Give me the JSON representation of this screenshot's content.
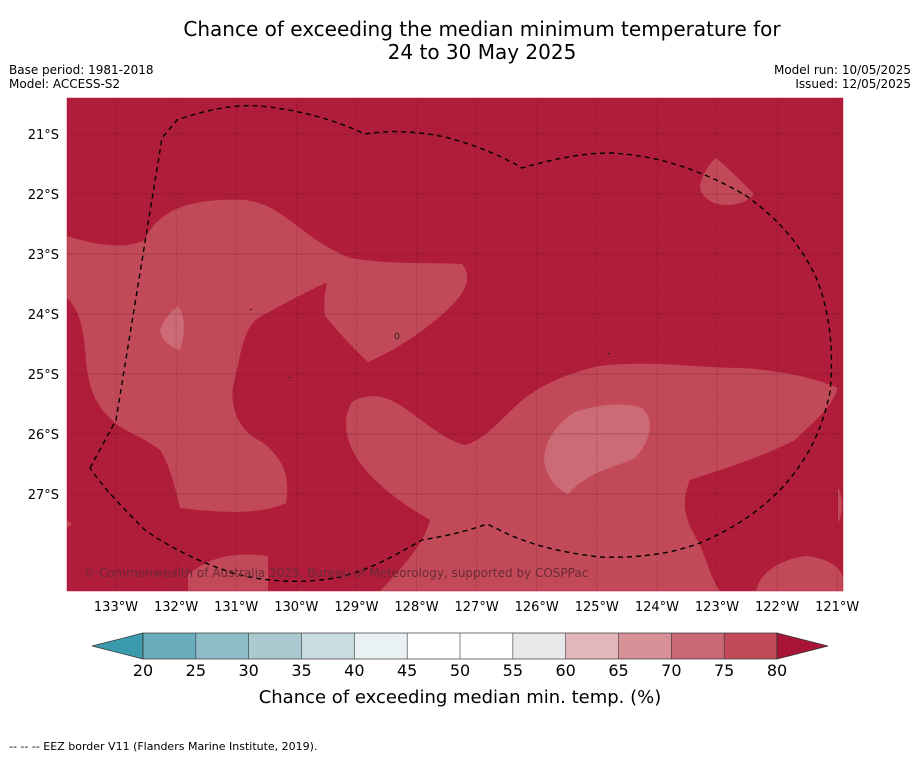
{
  "title": {
    "line1": "Chance of exceeding the median minimum temperature for",
    "line2": "24 to 30 May 2025"
  },
  "meta_left": {
    "base_period": "Base period: 1981-2018",
    "model": "Model: ACCESS-S2"
  },
  "meta_right": {
    "model_run": "Model run: 10/05/2025",
    "issued": "Issued: 12/05/2025"
  },
  "map": {
    "lat_labels": [
      "21°S",
      "22°S",
      "23°S",
      "24°S",
      "25°S",
      "26°S",
      "27°S"
    ],
    "lon_labels": [
      "133°W",
      "132°W",
      "131°W",
      "130°W",
      "129°W",
      "128°W",
      "127°W",
      "126°W",
      "125°W",
      "124°W",
      "123°W",
      "122°W",
      "121°W"
    ],
    "copyright": "© Commonwealth of Australia 2025, Bureau of Meteorology, supported by COSPPac",
    "colors": {
      "above_80": "#b01d3a",
      "75_80": "#c24a58",
      "70_75": "#cc6a76"
    }
  },
  "colorbar": {
    "ticks": [
      "20",
      "25",
      "30",
      "35",
      "40",
      "45",
      "50",
      "55",
      "60",
      "65",
      "70",
      "75",
      "80"
    ],
    "label": "Chance of exceeding median min. temp. (%)",
    "colors": [
      "#6aaebd",
      "#8ebcc7",
      "#aacad0",
      "#c9dce0",
      "#eaf1f3",
      "#ffffff",
      "#ffffff",
      "#e8e8e8",
      "#e3b6bc",
      "#d78f98",
      "#c96a76",
      "#c24a58"
    ],
    "low_color": "#3b9aab",
    "high_color": "#a81535"
  },
  "footer": "--  --  -- EEZ border V11 (Flanders Marine Institute, 2019)."
}
